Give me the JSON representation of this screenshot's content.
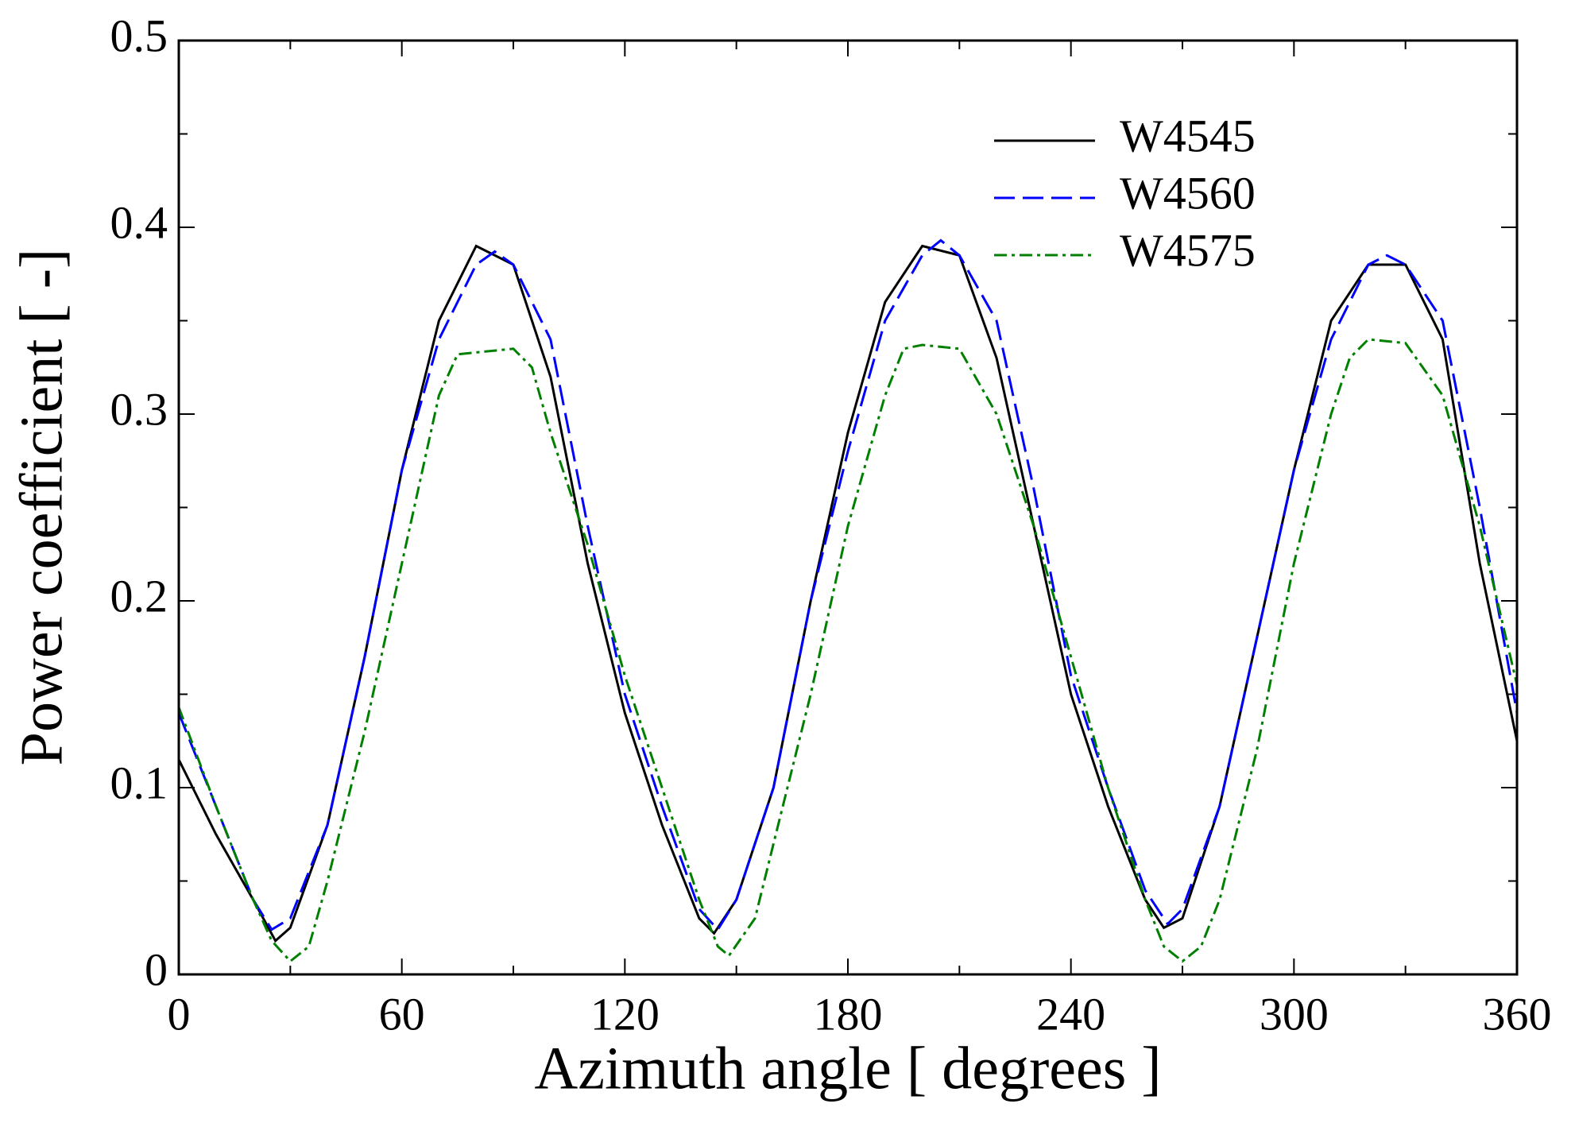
{
  "chart_data": {
    "type": "line",
    "x_label": "Azimuth angle [ degrees ]",
    "y_label": "Power coefficient [ -]",
    "xlim": [
      0,
      360
    ],
    "xticks": [
      0,
      60,
      120,
      180,
      240,
      300,
      360
    ],
    "xminor_ticks": [
      30,
      90,
      150,
      210,
      270,
      330
    ],
    "ylim": [
      0,
      0.5
    ],
    "yticks": [
      0,
      0.1,
      0.2,
      0.3,
      0.4,
      0.5
    ],
    "yminor_ticks": [
      0.05,
      0.15,
      0.25,
      0.35,
      0.45
    ],
    "legend": "upper right",
    "series": [
      {
        "name": "W4545",
        "color": "#000000",
        "dash": "solid",
        "x": [
          0,
          10,
          20,
          26,
          30,
          40,
          50,
          60,
          70,
          80,
          90,
          100,
          110,
          120,
          130,
          140,
          144,
          150,
          160,
          170,
          180,
          190,
          200,
          210,
          220,
          230,
          240,
          250,
          260,
          265,
          270,
          280,
          290,
          300,
          310,
          320,
          330,
          340,
          350,
          360
        ],
        "values": [
          0.115,
          0.075,
          0.04,
          0.018,
          0.025,
          0.08,
          0.17,
          0.27,
          0.35,
          0.39,
          0.38,
          0.32,
          0.22,
          0.14,
          0.08,
          0.03,
          0.022,
          0.04,
          0.1,
          0.2,
          0.29,
          0.36,
          0.39,
          0.385,
          0.33,
          0.24,
          0.15,
          0.09,
          0.04,
          0.025,
          0.03,
          0.09,
          0.18,
          0.27,
          0.35,
          0.38,
          0.38,
          0.34,
          0.22,
          0.125
        ]
      },
      {
        "name": "W4560",
        "color": "#0000ff",
        "dash": "dashed",
        "x": [
          0,
          10,
          20,
          25,
          30,
          40,
          50,
          60,
          70,
          80,
          85,
          90,
          100,
          110,
          120,
          130,
          140,
          145,
          150,
          160,
          170,
          180,
          190,
          200,
          205,
          210,
          220,
          230,
          240,
          250,
          260,
          266,
          270,
          280,
          290,
          300,
          310,
          320,
          325,
          330,
          340,
          350,
          360
        ],
        "values": [
          0.14,
          0.09,
          0.04,
          0.024,
          0.03,
          0.08,
          0.17,
          0.27,
          0.34,
          0.38,
          0.387,
          0.38,
          0.34,
          0.24,
          0.15,
          0.09,
          0.035,
          0.024,
          0.04,
          0.1,
          0.2,
          0.28,
          0.35,
          0.385,
          0.393,
          0.385,
          0.35,
          0.26,
          0.16,
          0.1,
          0.045,
          0.027,
          0.035,
          0.09,
          0.18,
          0.27,
          0.34,
          0.38,
          0.385,
          0.38,
          0.35,
          0.25,
          0.14
        ]
      },
      {
        "name": "W4575",
        "color": "#008000",
        "dash": "dashdot",
        "x": [
          0,
          10,
          20,
          25,
          30,
          35,
          40,
          50,
          60,
          70,
          75,
          80,
          90,
          95,
          100,
          110,
          120,
          130,
          140,
          145,
          148,
          155,
          160,
          170,
          180,
          190,
          195,
          200,
          210,
          220,
          230,
          240,
          250,
          260,
          265,
          270,
          275,
          280,
          290,
          300,
          310,
          315,
          320,
          330,
          340,
          350,
          360
        ],
        "values": [
          0.143,
          0.09,
          0.04,
          0.018,
          0.007,
          0.015,
          0.05,
          0.13,
          0.22,
          0.31,
          0.332,
          0.333,
          0.335,
          0.325,
          0.29,
          0.23,
          0.16,
          0.1,
          0.04,
          0.015,
          0.01,
          0.03,
          0.07,
          0.15,
          0.24,
          0.31,
          0.335,
          0.337,
          0.335,
          0.3,
          0.24,
          0.17,
          0.1,
          0.04,
          0.015,
          0.007,
          0.015,
          0.04,
          0.12,
          0.22,
          0.3,
          0.33,
          0.34,
          0.338,
          0.31,
          0.24,
          0.155
        ]
      }
    ]
  }
}
